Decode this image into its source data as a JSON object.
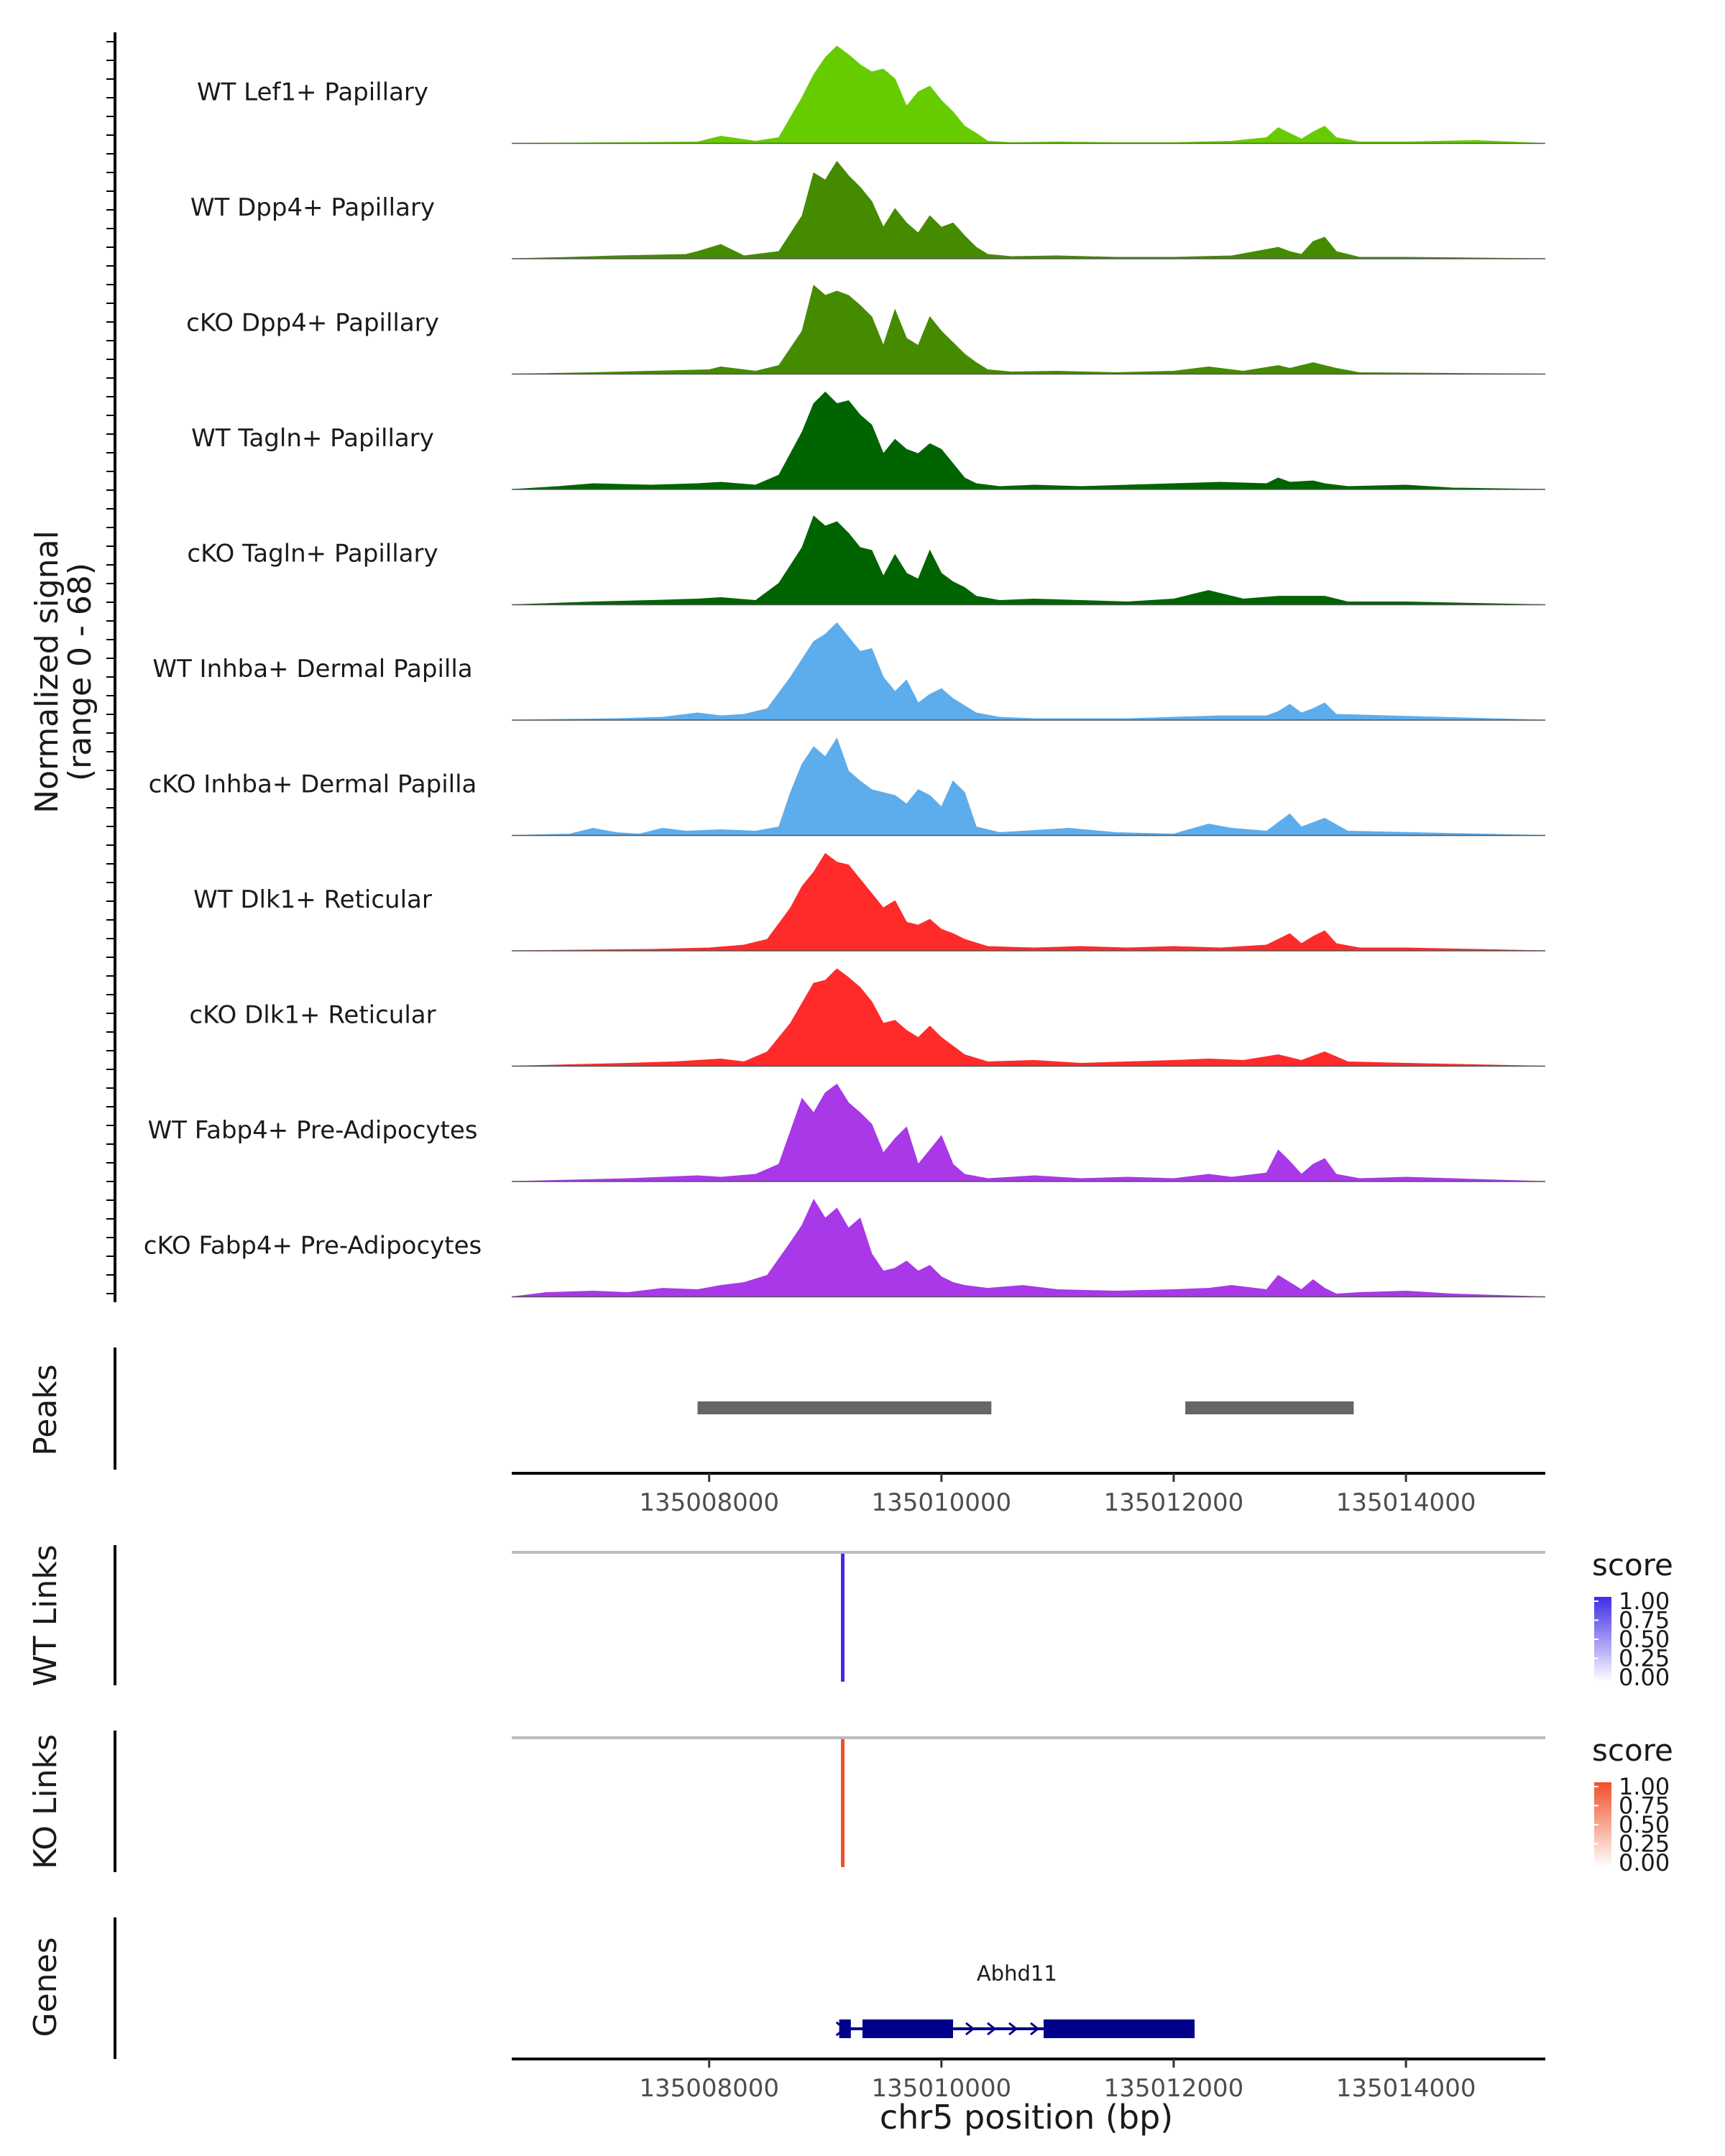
{
  "chart_data": {
    "type": "area",
    "title": "",
    "region": "chr5",
    "xlabel": "chr5 position (bp)",
    "xlim": [
      135006300,
      135015200
    ],
    "x_ticks": [
      135008000,
      135010000,
      135012000,
      135014000
    ],
    "x_tick_labels": [
      "135008000",
      "135010000",
      "135012000",
      "135014000"
    ],
    "coverage_ylabel_line1": "Normalized signal",
    "coverage_ylabel_line2": "(range 0 - 68)",
    "coverage_ylim": [
      0,
      68
    ],
    "series": [
      {
        "name": "WT Lef1+ Papillary",
        "color": "#66CC00",
        "scale": 0.95,
        "x": [
          135006300,
          135007200,
          135007900,
          135008100,
          135008400,
          135008600,
          135008800,
          135008900,
          135009000,
          135009100,
          135009200,
          135009300,
          135009400,
          135009500,
          135009600,
          135009700,
          135009800,
          135009900,
          135010000,
          135010100,
          135010200,
          135010300,
          135010400,
          135010600,
          135011000,
          135011500,
          135012000,
          135012500,
          135012800,
          135012900,
          135013000,
          135013100,
          135013200,
          135013300,
          135013400,
          135013600,
          135014000,
          135014600,
          135015200
        ],
        "y": [
          0,
          0.5,
          1,
          5,
          1.5,
          4,
          32,
          48,
          60,
          68,
          62,
          55,
          50,
          52,
          45,
          26,
          36,
          40,
          30,
          22,
          12,
          7,
          1.5,
          0.5,
          1,
          0.5,
          0.5,
          1.5,
          4,
          11,
          7,
          3,
          8,
          12,
          4,
          1,
          1,
          2,
          0
        ]
      },
      {
        "name": "WT Dpp4+ Papillary",
        "color": "#458B00",
        "scale": 0.95,
        "x": [
          135006300,
          135006800,
          135007200,
          135007800,
          135007900,
          135008100,
          135008300,
          135008600,
          135008800,
          135008900,
          135009000,
          135009100,
          135009200,
          135009300,
          135009400,
          135009500,
          135009600,
          135009700,
          135009800,
          135009900,
          135010000,
          135010100,
          135010200,
          135010300,
          135010400,
          135010600,
          135011000,
          135011500,
          135012000,
          135012500,
          135012900,
          135013000,
          135013100,
          135013200,
          135013300,
          135013400,
          135013600,
          135014000,
          135015200
        ],
        "y": [
          0,
          1,
          2,
          3,
          5,
          10,
          2,
          5,
          30,
          60,
          55,
          68,
          58,
          50,
          40,
          22,
          35,
          25,
          18,
          30,
          22,
          25,
          16,
          8,
          3,
          1.5,
          2,
          1,
          1,
          2,
          8,
          5,
          3,
          12,
          15,
          5,
          1,
          1,
          0
        ]
      },
      {
        "name": "cKO Dpp4+ Papillary",
        "color": "#458B00",
        "scale": 0.95,
        "x": [
          135006300,
          135007000,
          135007500,
          135008000,
          135008100,
          135008400,
          135008600,
          135008800,
          135008900,
          135009000,
          135009100,
          135009200,
          135009300,
          135009400,
          135009500,
          135009600,
          135009700,
          135009800,
          135009900,
          135010000,
          135010100,
          135010200,
          135010300,
          135010400,
          135010600,
          135011000,
          135011500,
          135012000,
          135012300,
          135012600,
          135012900,
          135013000,
          135013200,
          135013300,
          135013400,
          135013600,
          135015200
        ],
        "y": [
          0,
          1,
          2,
          3,
          5,
          2,
          6,
          30,
          62,
          55,
          58,
          55,
          48,
          40,
          20,
          45,
          25,
          20,
          40,
          30,
          22,
          14,
          8,
          3,
          1.5,
          2,
          1,
          2,
          5,
          2,
          6,
          4,
          8,
          6,
          4,
          1,
          0
        ]
      },
      {
        "name": "WT Tagln+ Papillary",
        "color": "#006400",
        "scale": 0.95,
        "x": [
          135006300,
          135006700,
          135007000,
          135007500,
          135007900,
          135008100,
          135008400,
          135008600,
          135008800,
          135008900,
          135009000,
          135009100,
          135009200,
          135009300,
          135009400,
          135009500,
          135009600,
          135009700,
          135009800,
          135009900,
          135010000,
          135010100,
          135010200,
          135010300,
          135010500,
          135010800,
          135011200,
          135011600,
          135012000,
          135012400,
          135012800,
          135012900,
          135013000,
          135013200,
          135013300,
          135013500,
          135014000,
          135014400,
          135015200
        ],
        "y": [
          0,
          2,
          4,
          3,
          4,
          5,
          3,
          10,
          40,
          60,
          68,
          60,
          62,
          52,
          45,
          25,
          35,
          28,
          25,
          32,
          28,
          18,
          8,
          4,
          2,
          3,
          2,
          3,
          4,
          5,
          4,
          8,
          5,
          6,
          4,
          2,
          3,
          1,
          0
        ]
      },
      {
        "name": "cKO Tagln+ Papillary",
        "color": "#006400",
        "scale": 0.95,
        "x": [
          135006300,
          135007000,
          135007500,
          135007900,
          135008100,
          135008400,
          135008600,
          135008800,
          135008900,
          135009000,
          135009100,
          135009200,
          135009300,
          135009400,
          135009500,
          135009600,
          135009700,
          135009800,
          135009900,
          135010000,
          135010100,
          135010200,
          135010300,
          135010500,
          135010800,
          135011200,
          135011600,
          135012000,
          135012300,
          135012600,
          135012900,
          135013100,
          135013300,
          135013500,
          135014000,
          135015200
        ],
        "y": [
          0,
          2,
          3,
          4,
          5,
          3,
          15,
          40,
          62,
          55,
          58,
          50,
          40,
          38,
          20,
          35,
          22,
          18,
          38,
          22,
          16,
          12,
          6,
          3,
          4,
          3,
          2,
          4,
          10,
          4,
          6,
          6,
          6,
          2,
          2,
          0
        ]
      },
      {
        "name": "WT Inhba+ Dermal Papilla",
        "color": "#5DADEC",
        "scale": 0.95,
        "x": [
          135006300,
          135007200,
          135007600,
          135007900,
          135008100,
          135008300,
          135008500,
          135008700,
          135008900,
          135009000,
          135009100,
          135009200,
          135009300,
          135009400,
          135009500,
          135009600,
          135009700,
          135009800,
          135009900,
          135010000,
          135010100,
          135010200,
          135010300,
          135010500,
          135010800,
          135011200,
          135011600,
          135012000,
          135012400,
          135012800,
          135012900,
          135013000,
          135013100,
          135013200,
          135013300,
          135013400,
          135015200
        ],
        "y": [
          0,
          1,
          2,
          5,
          3,
          4,
          8,
          30,
          55,
          60,
          68,
          58,
          48,
          50,
          30,
          20,
          28,
          12,
          18,
          22,
          15,
          10,
          5,
          2,
          1,
          1,
          1,
          2,
          3,
          3,
          6,
          11,
          5,
          8,
          12,
          4,
          0
        ]
      },
      {
        "name": "cKO Inhba+ Dermal Papilla",
        "color": "#5DADEC",
        "scale": 0.95,
        "x": [
          135006300,
          135006800,
          135007000,
          135007200,
          135007400,
          135007600,
          135007800,
          135008100,
          135008400,
          135008600,
          135008700,
          135008800,
          135008900,
          135009000,
          135009100,
          135009200,
          135009300,
          135009400,
          135009500,
          135009600,
          135009700,
          135009800,
          135009900,
          135010000,
          135010100,
          135010200,
          135010300,
          135010500,
          135010900,
          135011100,
          135011500,
          135012000,
          135012300,
          135012500,
          135012800,
          135013000,
          135013100,
          135013300,
          135013500,
          135015200
        ],
        "y": [
          0,
          1,
          5,
          2,
          1,
          5,
          3,
          4,
          3,
          6,
          30,
          50,
          62,
          55,
          68,
          45,
          38,
          32,
          30,
          28,
          22,
          32,
          28,
          20,
          38,
          30,
          6,
          2,
          4,
          5,
          2,
          1,
          8,
          5,
          3,
          15,
          6,
          12,
          3,
          0
        ]
      },
      {
        "name": "WT Dlk1+ Reticular",
        "color": "#FF2A2A",
        "scale": 0.95,
        "x": [
          135006300,
          135007500,
          135008000,
          135008300,
          135008500,
          135008700,
          135008800,
          135008900,
          135009000,
          135009100,
          135009200,
          135009300,
          135009400,
          135009500,
          135009600,
          135009700,
          135009800,
          135009900,
          135010000,
          135010100,
          135010200,
          135010400,
          135010800,
          135011200,
          135011600,
          135012000,
          135012400,
          135012800,
          135012900,
          135013000,
          135013100,
          135013200,
          135013300,
          135013400,
          135013600,
          135014000,
          135014600,
          135015200
        ],
        "y": [
          0,
          1,
          2,
          4,
          8,
          30,
          45,
          55,
          68,
          62,
          60,
          50,
          40,
          30,
          35,
          20,
          18,
          22,
          15,
          12,
          8,
          3,
          2,
          3,
          2,
          3,
          2,
          4,
          8,
          12,
          5,
          10,
          14,
          5,
          2,
          2,
          1,
          0
        ]
      },
      {
        "name": "cKO Dlk1+ Reticular",
        "color": "#FF2A2A",
        "scale": 0.95,
        "x": [
          135006300,
          135007300,
          135007700,
          135007900,
          135008100,
          135008300,
          135008500,
          135008700,
          135008900,
          135009000,
          135009100,
          135009200,
          135009300,
          135009400,
          135009500,
          135009600,
          135009700,
          135009800,
          135009900,
          135010000,
          135010100,
          135010200,
          135010400,
          135010800,
          135011200,
          135011600,
          135012000,
          135012300,
          135012600,
          135012900,
          135013100,
          135013300,
          135013500,
          135014000,
          135015200
        ],
        "y": [
          0,
          2,
          3,
          4,
          5,
          3,
          10,
          30,
          58,
          60,
          68,
          62,
          55,
          45,
          30,
          32,
          25,
          20,
          28,
          20,
          14,
          8,
          3,
          4,
          2,
          3,
          4,
          5,
          4,
          8,
          4,
          10,
          3,
          2,
          0
        ]
      },
      {
        "name": "WT Fabp4+ Pre-Adipocytes",
        "color": "#A838E8",
        "scale": 0.95,
        "x": [
          135006300,
          135007300,
          135007600,
          135007900,
          135008100,
          135008400,
          135008600,
          135008700,
          135008800,
          135008900,
          135009000,
          135009100,
          135009200,
          135009300,
          135009400,
          135009500,
          135009600,
          135009700,
          135009800,
          135009900,
          135010000,
          135010100,
          135010200,
          135010400,
          135010800,
          135011200,
          135011600,
          135012000,
          135012300,
          135012500,
          135012800,
          135012900,
          135013000,
          135013100,
          135013200,
          135013300,
          135013400,
          135013600,
          135014000,
          135014400,
          135015200
        ],
        "y": [
          0,
          2,
          3,
          4,
          3,
          5,
          12,
          35,
          58,
          48,
          62,
          68,
          55,
          48,
          40,
          20,
          30,
          38,
          12,
          22,
          32,
          12,
          5,
          2,
          4,
          2,
          3,
          2,
          5,
          3,
          6,
          22,
          14,
          5,
          12,
          16,
          5,
          2,
          3,
          2,
          0
        ]
      },
      {
        "name": "cKO Fabp4+ Pre-Adipocytes",
        "color": "#A838E8",
        "scale": 0.95,
        "x": [
          135006300,
          135006600,
          135007000,
          135007300,
          135007600,
          135007900,
          135008100,
          135008300,
          135008500,
          135008700,
          135008800,
          135008900,
          135009000,
          135009100,
          135009200,
          135009300,
          135009400,
          135009500,
          135009600,
          135009700,
          135009800,
          135009900,
          135010000,
          135010100,
          135010200,
          135010400,
          135010700,
          135011000,
          135011500,
          135012000,
          135012300,
          135012500,
          135012800,
          135012900,
          135013000,
          135013100,
          135013200,
          135013300,
          135013400,
          135013600,
          135014000,
          135014400,
          135015200
        ],
        "y": [
          0,
          3,
          4,
          3,
          6,
          5,
          8,
          10,
          15,
          38,
          50,
          68,
          55,
          62,
          48,
          55,
          30,
          18,
          20,
          25,
          18,
          22,
          14,
          10,
          8,
          6,
          8,
          5,
          4,
          5,
          6,
          8,
          5,
          15,
          10,
          5,
          12,
          6,
          2,
          3,
          4,
          2,
          0
        ]
      }
    ],
    "peaks_label": "Peaks",
    "peaks": [
      [
        135007900,
        135010430
      ],
      [
        135012100,
        135013550
      ]
    ],
    "wt_links_label": "WT Links",
    "ko_links_label": "KO Links",
    "wt_links": [
      {
        "position": 135009150,
        "score": 1.0
      }
    ],
    "ko_links": [
      {
        "position": 135009150,
        "score": 1.0
      }
    ],
    "legend_title": "score",
    "legend_ticks": [
      "1.00",
      "0.75",
      "0.50",
      "0.25",
      "0.00"
    ],
    "wt_link_color": "#3F2BE8",
    "ko_link_color": "#F0502A",
    "genes_label": "Genes",
    "gene": {
      "name": "Abhd11",
      "start": 135009120,
      "end": 135012180,
      "strand": "+",
      "exons": [
        [
          135009120,
          135009220
        ],
        [
          135009320,
          135010100
        ],
        [
          135010880,
          135012180
        ]
      ],
      "color": "#00008B"
    }
  }
}
